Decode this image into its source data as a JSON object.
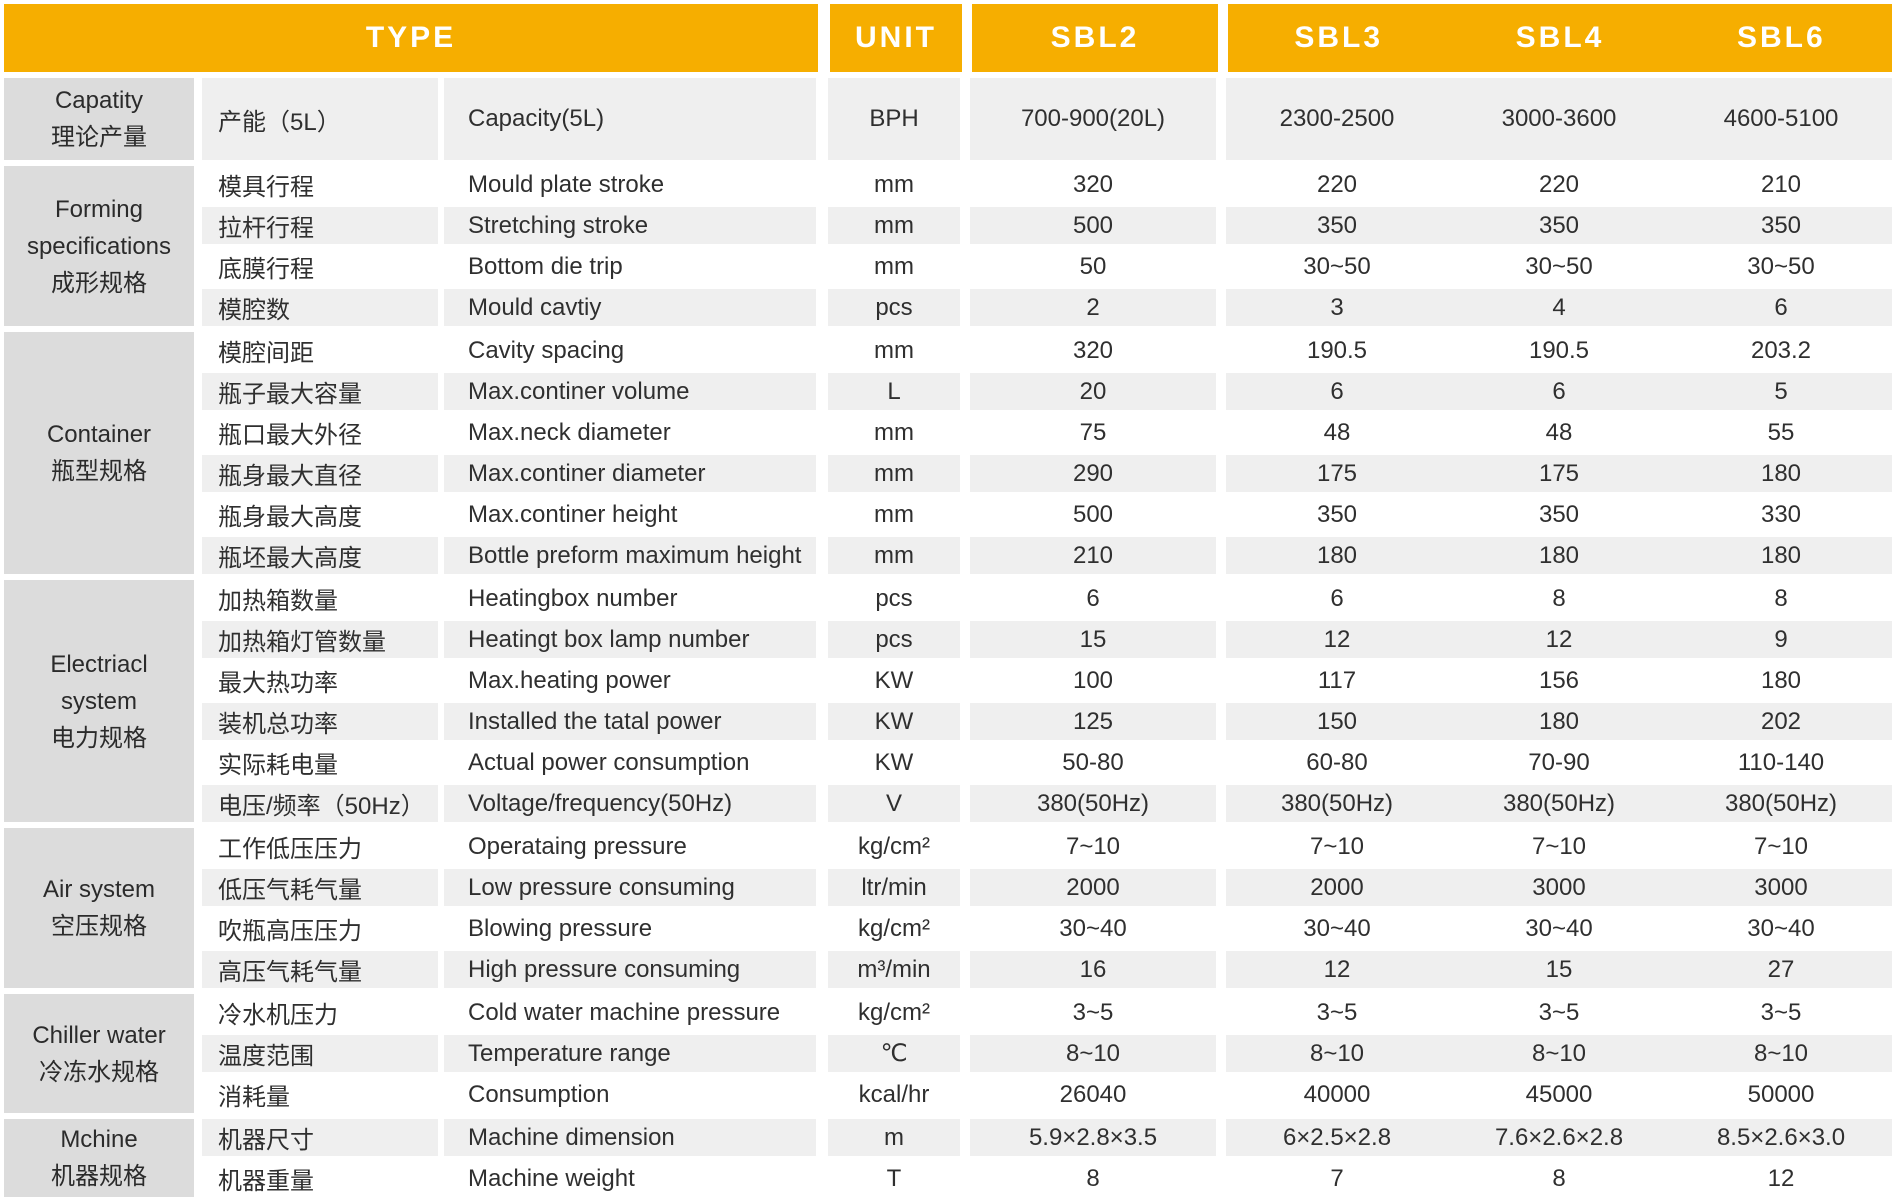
{
  "colors": {
    "header_bg": "#F6AE00",
    "header_text": "#FFFFFF",
    "group_bg": "#DCDCDC",
    "row_even_bg": "#EFEFEF",
    "row_odd_bg": "#FFFFFF",
    "text": "#2F2F2F"
  },
  "table": {
    "header": {
      "type_label": "TYPE",
      "unit_label": "UNIT",
      "models": [
        "SBL2",
        "SBL3",
        "SBL4",
        "SBL6"
      ]
    },
    "sections": [
      {
        "id": "capacity",
        "group_lines": [
          "Capatity",
          "理论产量"
        ],
        "rows": [
          {
            "zh": "产能（5L）",
            "en": "Capacity(5L)",
            "unit": "BPH",
            "values": [
              "700-900(20L)",
              "2300-2500",
              "3000-3600",
              "4600-5100"
            ]
          }
        ]
      },
      {
        "id": "forming",
        "group_lines": [
          "Forming",
          "specifications",
          "成形规格"
        ],
        "rows": [
          {
            "zh": "模具行程",
            "en": "Mould plate stroke",
            "unit": "mm",
            "values": [
              "320",
              "220",
              "220",
              "210"
            ]
          },
          {
            "zh": "拉杆行程",
            "en": "Stretching stroke",
            "unit": "mm",
            "values": [
              "500",
              "350",
              "350",
              "350"
            ]
          },
          {
            "zh": "底膜行程",
            "en": "Bottom die trip",
            "unit": "mm",
            "values": [
              "50",
              "30~50",
              "30~50",
              "30~50"
            ]
          },
          {
            "zh": "模腔数",
            "en": "Mould cavtiy",
            "unit": "pcs",
            "values": [
              "2",
              "3",
              "4",
              "6"
            ]
          }
        ]
      },
      {
        "id": "container",
        "group_lines": [
          "Container",
          "瓶型规格"
        ],
        "rows": [
          {
            "zh": "模腔间距",
            "en": "Cavity spacing",
            "unit": "mm",
            "values": [
              "320",
              "190.5",
              "190.5",
              "203.2"
            ]
          },
          {
            "zh": "瓶子最大容量",
            "en": "Max.continer volume",
            "unit": "L",
            "values": [
              "20",
              "6",
              "6",
              "5"
            ]
          },
          {
            "zh": "瓶口最大外径",
            "en": "Max.neck diameter",
            "unit": "mm",
            "values": [
              "75",
              "48",
              "48",
              "55"
            ]
          },
          {
            "zh": "瓶身最大直径",
            "en": "Max.continer diameter",
            "unit": "mm",
            "values": [
              "290",
              "175",
              "175",
              "180"
            ]
          },
          {
            "zh": "瓶身最大高度",
            "en": "Max.continer height",
            "unit": "mm",
            "values": [
              "500",
              "350",
              "350",
              "330"
            ]
          },
          {
            "zh": "瓶坯最大高度",
            "en": "Bottle preform maximum height",
            "unit": "mm",
            "values": [
              "210",
              "180",
              "180",
              "180"
            ]
          }
        ]
      },
      {
        "id": "electrical",
        "group_lines": [
          "Electriacl",
          "system",
          "电力规格"
        ],
        "rows": [
          {
            "zh": "加热箱数量",
            "en": "Heatingbox number",
            "unit": "pcs",
            "values": [
              "6",
              "6",
              "8",
              "8"
            ]
          },
          {
            "zh": "加热箱灯管数量",
            "en": "Heatingt box lamp number",
            "unit": "pcs",
            "values": [
              "15",
              "12",
              "12",
              "9"
            ]
          },
          {
            "zh": "最大热功率",
            "en": "Max.heating power",
            "unit": "KW",
            "values": [
              "100",
              "117",
              "156",
              "180"
            ]
          },
          {
            "zh": "装机总功率",
            "en": "Installed the tatal power",
            "unit": "KW",
            "values": [
              "125",
              "150",
              "180",
              "202"
            ]
          },
          {
            "zh": "实际耗电量",
            "en": "Actual power consumption",
            "unit": "KW",
            "values": [
              "50-80",
              "60-80",
              "70-90",
              "110-140"
            ]
          },
          {
            "zh": "电压/频率（50Hz）",
            "en": "Voltage/frequency(50Hz)",
            "unit": "V",
            "values": [
              "380(50Hz)",
              "380(50Hz)",
              "380(50Hz)",
              "380(50Hz)"
            ]
          }
        ]
      },
      {
        "id": "air",
        "group_lines": [
          "Air system",
          "空压规格"
        ],
        "rows": [
          {
            "zh": "工作低压压力",
            "en": "Operataing pressure",
            "unit": "kg/cm²",
            "values": [
              "7~10",
              "7~10",
              "7~10",
              "7~10"
            ]
          },
          {
            "zh": "低压气耗气量",
            "en": "Low pressure consuming",
            "unit": "ltr/min",
            "values": [
              "2000",
              "2000",
              "3000",
              "3000"
            ]
          },
          {
            "zh": "吹瓶高压压力",
            "en": "Blowing pressure",
            "unit": "kg/cm²",
            "values": [
              "30~40",
              "30~40",
              "30~40",
              "30~40"
            ]
          },
          {
            "zh": "高压气耗气量",
            "en": "High pressure consuming",
            "unit": "m³/min",
            "values": [
              "16",
              "12",
              "15",
              "27"
            ]
          }
        ]
      },
      {
        "id": "chiller",
        "group_lines": [
          "Chiller water",
          "冷冻水规格"
        ],
        "rows": [
          {
            "zh": "冷水机压力",
            "en": "Cold water machine pressure",
            "unit": "kg/cm²",
            "values": [
              "3~5",
              "3~5",
              "3~5",
              "3~5"
            ]
          },
          {
            "zh": "温度范围",
            "en": "Temperature range",
            "unit": "℃",
            "values": [
              "8~10",
              "8~10",
              "8~10",
              "8~10"
            ]
          },
          {
            "zh": "消耗量",
            "en": "Consumption",
            "unit": "kcal/hr",
            "values": [
              "26040",
              "40000",
              "45000",
              "50000"
            ]
          }
        ]
      },
      {
        "id": "machine",
        "group_lines": [
          "Mchine",
          "机器规格"
        ],
        "rows": [
          {
            "zh": "机器尺寸",
            "en": "Machine dimension",
            "unit": "m",
            "values": [
              "5.9×2.8×3.5",
              "6×2.5×2.8",
              "7.6×2.6×2.8",
              "8.5×2.6×3.0"
            ]
          },
          {
            "zh": "机器重量",
            "en": "Machine weight",
            "unit": "T",
            "values": [
              "8",
              "7",
              "8",
              "12"
            ]
          }
        ]
      }
    ]
  }
}
